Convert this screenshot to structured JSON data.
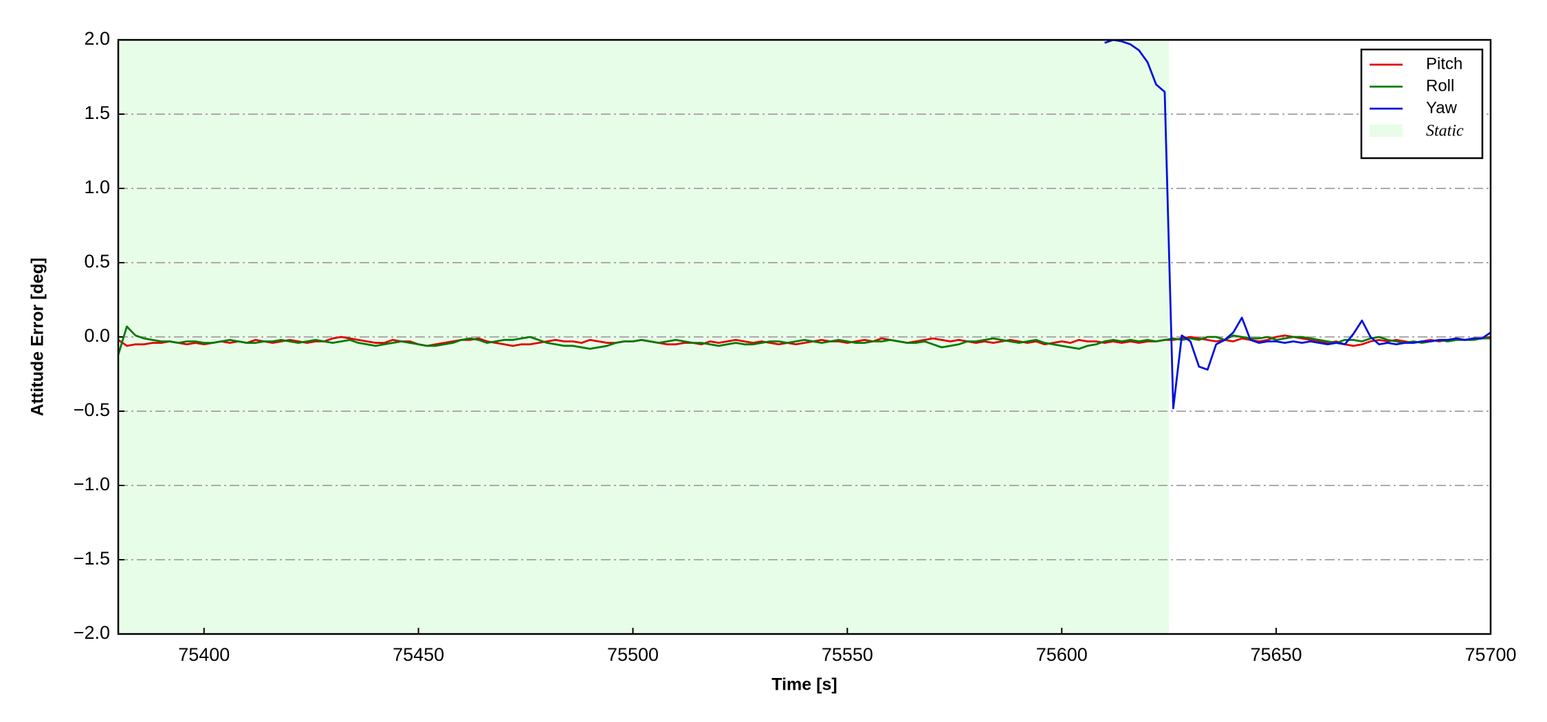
{
  "chart_data": {
    "type": "line",
    "xlabel": "Time [s]",
    "ylabel": "Attitude Error [deg]",
    "xlim": [
      75380,
      75700
    ],
    "ylim": [
      -2.0,
      2.0
    ],
    "xticks": [
      75400,
      75450,
      75500,
      75550,
      75600,
      75650,
      75700
    ],
    "yticks": [
      {
        "value": -2.0,
        "label": "−2.0"
      },
      {
        "value": -1.5,
        "label": "−1.5"
      },
      {
        "value": -1.0,
        "label": "−1.0"
      },
      {
        "value": -0.5,
        "label": "−0.5"
      },
      {
        "value": 0.0,
        "label": "0.0"
      },
      0.5,
      {
        "value": 1.0,
        "label": "1.0"
      },
      1.5,
      {
        "value": 2.0,
        "label": "2.0"
      }
    ],
    "grid": "y",
    "legend": "upper right",
    "shaded_region": {
      "name": "Static",
      "x0": 75380,
      "x1": 75625,
      "color": "#e8fde8"
    },
    "x": [
      75380,
      75382,
      75384,
      75386,
      75388,
      75390,
      75392,
      75394,
      75396,
      75398,
      75400,
      75402,
      75404,
      75406,
      75408,
      75410,
      75412,
      75414,
      75416,
      75418,
      75420,
      75422,
      75424,
      75426,
      75428,
      75430,
      75432,
      75434,
      75436,
      75438,
      75440,
      75442,
      75444,
      75446,
      75448,
      75450,
      75452,
      75454,
      75456,
      75458,
      75460,
      75462,
      75464,
      75466,
      75468,
      75470,
      75472,
      75474,
      75476,
      75478,
      75480,
      75482,
      75484,
      75486,
      75488,
      75490,
      75492,
      75494,
      75496,
      75498,
      75500,
      75502,
      75504,
      75506,
      75508,
      75510,
      75512,
      75514,
      75516,
      75518,
      75520,
      75522,
      75524,
      75526,
      75528,
      75530,
      75532,
      75534,
      75536,
      75538,
      75540,
      75542,
      75544,
      75546,
      75548,
      75550,
      75552,
      75554,
      75556,
      75558,
      75560,
      75562,
      75564,
      75566,
      75568,
      75570,
      75572,
      75574,
      75576,
      75578,
      75580,
      75582,
      75584,
      75586,
      75588,
      75590,
      75592,
      75594,
      75596,
      75598,
      75600,
      75602,
      75604,
      75606,
      75608,
      75610,
      75612,
      75614,
      75616,
      75618,
      75620,
      75622,
      75624,
      75626,
      75628,
      75630,
      75632,
      75634,
      75636,
      75638,
      75640,
      75642,
      75644,
      75646,
      75648,
      75650,
      75652,
      75654,
      75656,
      75658,
      75660,
      75662,
      75664,
      75666,
      75668,
      75670,
      75672,
      75674,
      75676,
      75678,
      75680,
      75682,
      75684,
      75686,
      75688,
      75690,
      75692,
      75694,
      75696,
      75698,
      75700
    ],
    "series": [
      {
        "name": "Pitch",
        "color": "#e00000",
        "values": [
          -0.02,
          -0.06,
          -0.05,
          -0.05,
          -0.04,
          -0.04,
          -0.03,
          -0.04,
          -0.05,
          -0.04,
          -0.05,
          -0.04,
          -0.03,
          -0.04,
          -0.03,
          -0.04,
          -0.02,
          -0.03,
          -0.04,
          -0.03,
          -0.02,
          -0.03,
          -0.04,
          -0.03,
          -0.03,
          -0.01,
          0.0,
          -0.01,
          -0.02,
          -0.03,
          -0.04,
          -0.04,
          -0.02,
          -0.03,
          -0.03,
          -0.05,
          -0.06,
          -0.05,
          -0.04,
          -0.03,
          -0.02,
          -0.02,
          -0.01,
          -0.03,
          -0.04,
          -0.05,
          -0.06,
          -0.05,
          -0.05,
          -0.04,
          -0.03,
          -0.02,
          -0.03,
          -0.03,
          -0.04,
          -0.02,
          -0.03,
          -0.04,
          -0.04,
          -0.03,
          -0.03,
          -0.02,
          -0.03,
          -0.04,
          -0.05,
          -0.05,
          -0.04,
          -0.04,
          -0.05,
          -0.03,
          -0.04,
          -0.03,
          -0.02,
          -0.03,
          -0.04,
          -0.03,
          -0.04,
          -0.05,
          -0.04,
          -0.05,
          -0.04,
          -0.03,
          -0.02,
          -0.03,
          -0.03,
          -0.04,
          -0.03,
          -0.02,
          -0.03,
          -0.01,
          -0.02,
          -0.03,
          -0.04,
          -0.03,
          -0.02,
          -0.01,
          -0.02,
          -0.03,
          -0.02,
          -0.03,
          -0.04,
          -0.03,
          -0.04,
          -0.03,
          -0.02,
          -0.03,
          -0.04,
          -0.03,
          -0.05,
          -0.04,
          -0.03,
          -0.04,
          -0.02,
          -0.03,
          -0.03,
          -0.04,
          -0.03,
          -0.04,
          -0.03,
          -0.04,
          -0.03,
          -0.03,
          -0.02,
          -0.02,
          -0.01,
          0.0,
          -0.01,
          -0.02,
          -0.03,
          -0.02,
          -0.03,
          -0.01,
          -0.02,
          -0.03,
          -0.02,
          0.0,
          0.01,
          0.0,
          -0.01,
          -0.02,
          -0.03,
          -0.04,
          -0.03,
          -0.05,
          -0.06,
          -0.05,
          -0.03,
          -0.02,
          -0.03,
          -0.02,
          -0.03,
          -0.04,
          -0.03,
          -0.02,
          -0.03,
          -0.02,
          -0.01,
          -0.02,
          -0.01,
          -0.01,
          0.0
        ]
      },
      {
        "name": "Roll",
        "color": "#007a00",
        "values": [
          -0.12,
          0.07,
          0.01,
          -0.01,
          -0.02,
          -0.03,
          -0.03,
          -0.04,
          -0.03,
          -0.03,
          -0.04,
          -0.04,
          -0.03,
          -0.02,
          -0.03,
          -0.04,
          -0.04,
          -0.03,
          -0.03,
          -0.02,
          -0.03,
          -0.04,
          -0.03,
          -0.02,
          -0.03,
          -0.04,
          -0.03,
          -0.02,
          -0.04,
          -0.05,
          -0.06,
          -0.05,
          -0.04,
          -0.03,
          -0.04,
          -0.05,
          -0.06,
          -0.06,
          -0.05,
          -0.04,
          -0.02,
          -0.01,
          -0.02,
          -0.04,
          -0.03,
          -0.02,
          -0.02,
          -0.01,
          0.0,
          -0.02,
          -0.04,
          -0.05,
          -0.06,
          -0.06,
          -0.07,
          -0.08,
          -0.07,
          -0.06,
          -0.04,
          -0.03,
          -0.03,
          -0.02,
          -0.03,
          -0.04,
          -0.03,
          -0.02,
          -0.03,
          -0.04,
          -0.04,
          -0.05,
          -0.06,
          -0.05,
          -0.04,
          -0.05,
          -0.05,
          -0.04,
          -0.03,
          -0.03,
          -0.04,
          -0.03,
          -0.02,
          -0.03,
          -0.04,
          -0.03,
          -0.02,
          -0.03,
          -0.04,
          -0.04,
          -0.03,
          -0.03,
          -0.02,
          -0.03,
          -0.04,
          -0.04,
          -0.03,
          -0.05,
          -0.07,
          -0.06,
          -0.05,
          -0.03,
          -0.03,
          -0.02,
          -0.01,
          -0.02,
          -0.03,
          -0.04,
          -0.03,
          -0.02,
          -0.04,
          -0.05,
          -0.06,
          -0.07,
          -0.08,
          -0.06,
          -0.05,
          -0.03,
          -0.02,
          -0.03,
          -0.02,
          -0.03,
          -0.02,
          -0.03,
          -0.02,
          -0.01,
          -0.02,
          -0.01,
          -0.02,
          0.0,
          0.0,
          -0.02,
          0.01,
          0.0,
          -0.01,
          -0.01,
          0.0,
          -0.02,
          -0.01,
          0.0,
          0.0,
          -0.01,
          -0.02,
          -0.03,
          -0.04,
          -0.02,
          -0.02,
          -0.03,
          -0.01,
          0.0,
          -0.02,
          -0.03,
          -0.04,
          -0.03,
          -0.04,
          -0.03,
          -0.02,
          -0.03,
          -0.02,
          -0.02,
          -0.02,
          -0.01,
          -0.01
        ]
      },
      {
        "name": "Yaw",
        "color": "#0010e0",
        "values": [
          null,
          null,
          null,
          null,
          null,
          null,
          null,
          null,
          null,
          null,
          null,
          null,
          null,
          null,
          null,
          null,
          null,
          null,
          null,
          null,
          null,
          null,
          null,
          null,
          null,
          null,
          null,
          null,
          null,
          null,
          null,
          null,
          null,
          null,
          null,
          null,
          null,
          null,
          null,
          null,
          null,
          null,
          null,
          null,
          null,
          null,
          null,
          null,
          null,
          null,
          null,
          null,
          null,
          null,
          null,
          null,
          null,
          null,
          null,
          null,
          null,
          null,
          null,
          null,
          null,
          null,
          null,
          null,
          null,
          null,
          null,
          null,
          null,
          null,
          null,
          null,
          null,
          null,
          null,
          null,
          null,
          null,
          null,
          null,
          null,
          null,
          null,
          null,
          null,
          null,
          null,
          null,
          null,
          null,
          null,
          null,
          null,
          null,
          null,
          null,
          null,
          null,
          null,
          null,
          null,
          null,
          null,
          null,
          null,
          null,
          null,
          null,
          null,
          null,
          null,
          1.98,
          2.0,
          1.99,
          1.97,
          1.93,
          1.85,
          1.7,
          1.65,
          -0.48,
          0.01,
          -0.03,
          -0.2,
          -0.22,
          -0.05,
          -0.02,
          0.03,
          0.13,
          -0.02,
          -0.04,
          -0.03,
          -0.03,
          -0.04,
          -0.03,
          -0.04,
          -0.03,
          -0.04,
          -0.05,
          -0.04,
          -0.05,
          0.02,
          0.11,
          0.0,
          -0.05,
          -0.04,
          -0.05,
          -0.04,
          -0.04,
          -0.03,
          -0.03,
          -0.02,
          -0.02,
          -0.01,
          -0.02,
          -0.01,
          -0.01,
          0.03
        ]
      }
    ]
  }
}
